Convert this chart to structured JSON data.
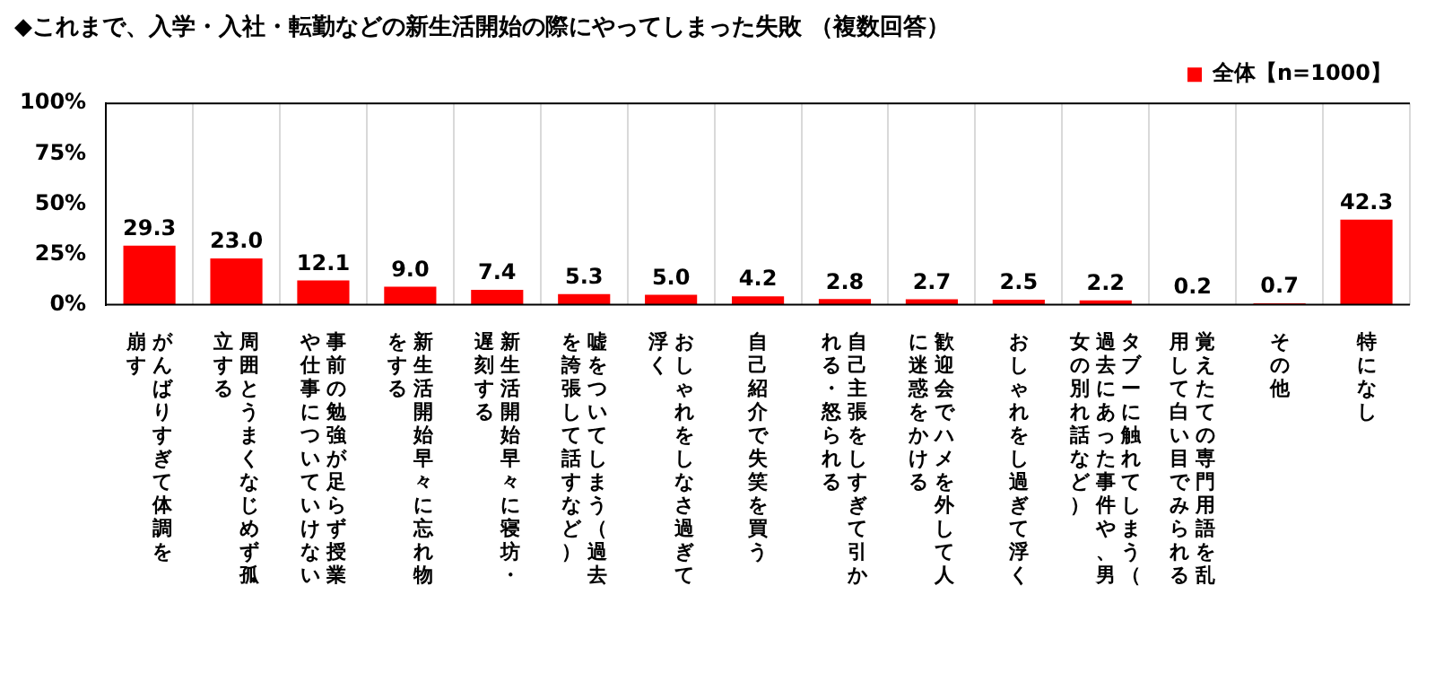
{
  "chart_data": {
    "type": "bar",
    "title": "◆これまで、入学・入社・転勤などの新生活開始の際にやってしまった失敗 （複数回答）",
    "categories": [
      "がんばりすぎて体調を崩す",
      "周囲とうまくなじめず孤立する",
      "事前の勉強が足らず授業や仕事についていけない",
      "新生活開始早々に忘れ物をする",
      "新生活開始早々に寝坊・遅刻する",
      "嘘をついてしまう（過去を誇張して話すなど）",
      "おしゃれをしなさ過ぎて浮く",
      "自己紹介で失笑を買う",
      "自己主張をしすぎて引かれる・怒られる",
      "歓迎会でハメを外して人に迷惑をかける",
      "おしゃれをし過ぎて浮く",
      "タブーに触れてしまう（過去にあった事件や、男女の別れ話など）",
      "覚えたての専門用語を乱用して白い目でみられる",
      "その他",
      "特になし"
    ],
    "series": [
      {
        "name": "全体【n=1000】",
        "color": "#ff0000",
        "values": [
          29.3,
          23.0,
          12.1,
          9.0,
          7.4,
          5.3,
          5.0,
          4.2,
          2.8,
          2.7,
          2.5,
          2.2,
          0.2,
          0.7,
          42.3
        ],
        "value_labels": [
          "29.3",
          "23.0",
          "12.1",
          "9.0",
          "7.4",
          "5.3",
          "5.0",
          "4.2",
          "2.8",
          "2.7",
          "2.5",
          "2.2",
          "0.2",
          "0.7",
          "42.3"
        ]
      }
    ],
    "ylim": [
      0,
      100
    ],
    "yticks": [
      {
        "value": 0,
        "label": "0%"
      },
      {
        "value": 25,
        "label": "25%"
      },
      {
        "value": 50,
        "label": "50%"
      },
      {
        "value": 75,
        "label": "75%"
      },
      {
        "value": 100,
        "label": "100%"
      }
    ],
    "grid": "x",
    "legend": "top right"
  }
}
